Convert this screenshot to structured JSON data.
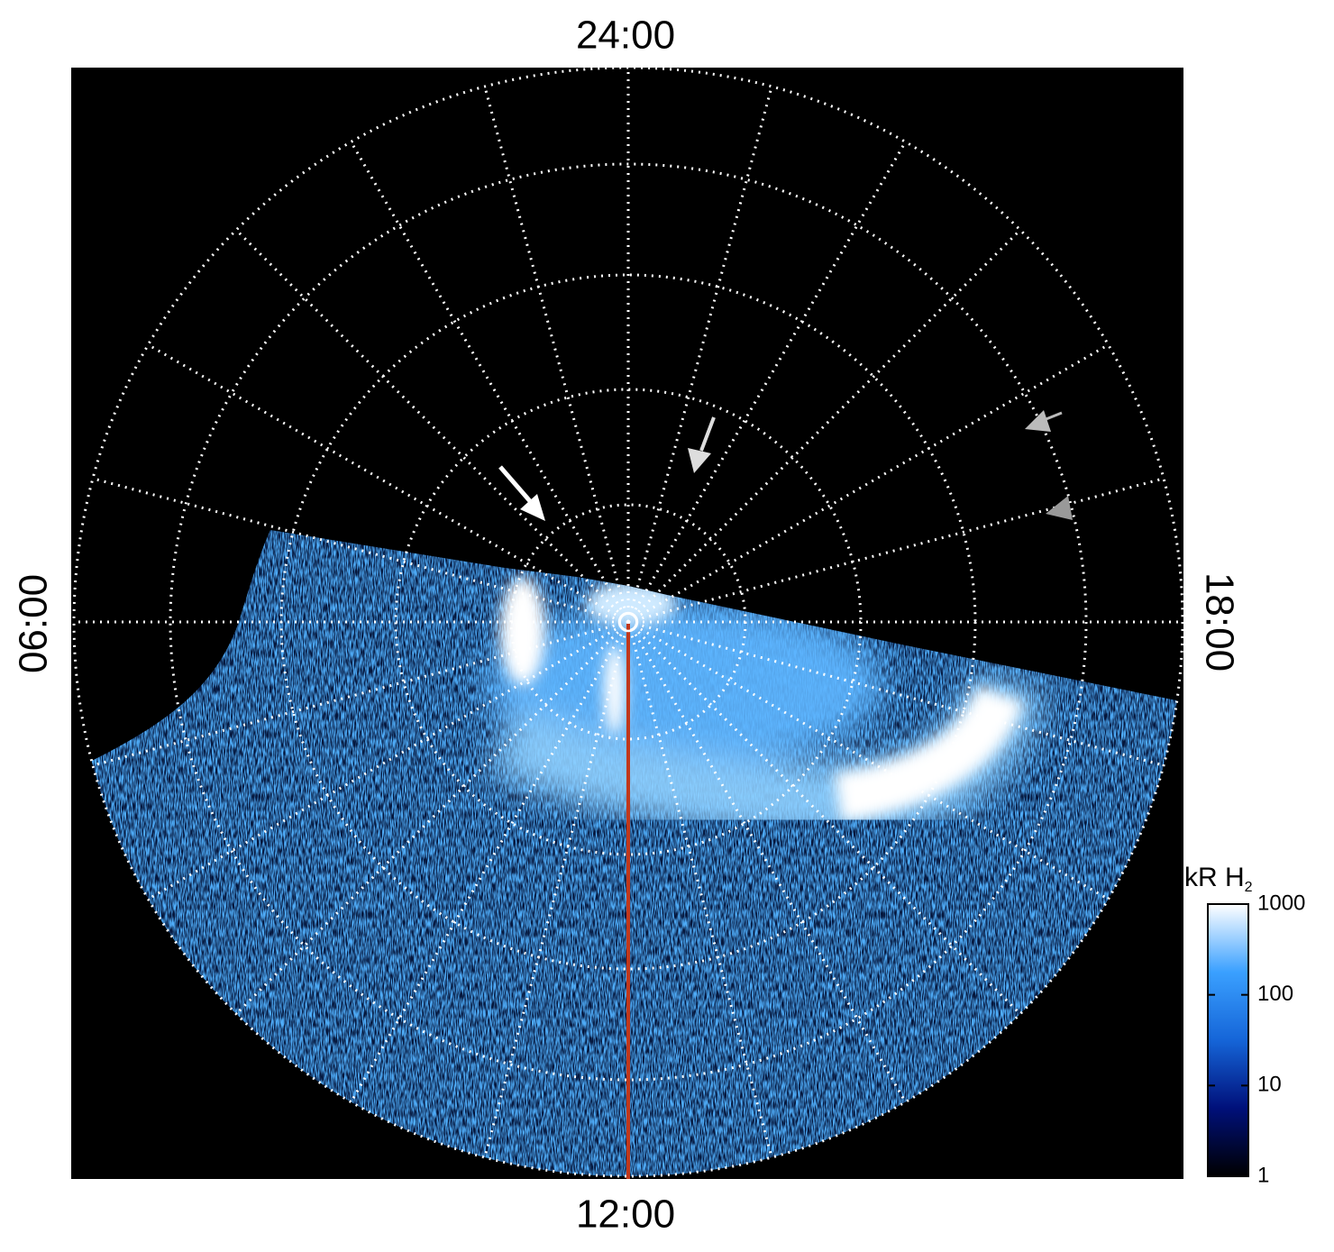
{
  "chart_data": {
    "type": "polar-image",
    "local_time_labels": {
      "top": "24:00",
      "left": "06:00",
      "right": "18:00",
      "bottom": "12:00"
    },
    "colorbar": {
      "title": "kR H",
      "title_subscript": "2",
      "log": true,
      "lim": [
        1,
        1000
      ],
      "ticks": [
        1,
        10,
        100,
        1000
      ],
      "colors": [
        "#000000",
        "#00107a",
        "#1565d8",
        "#3aa0ff",
        "#ffffff"
      ]
    }
  }
}
